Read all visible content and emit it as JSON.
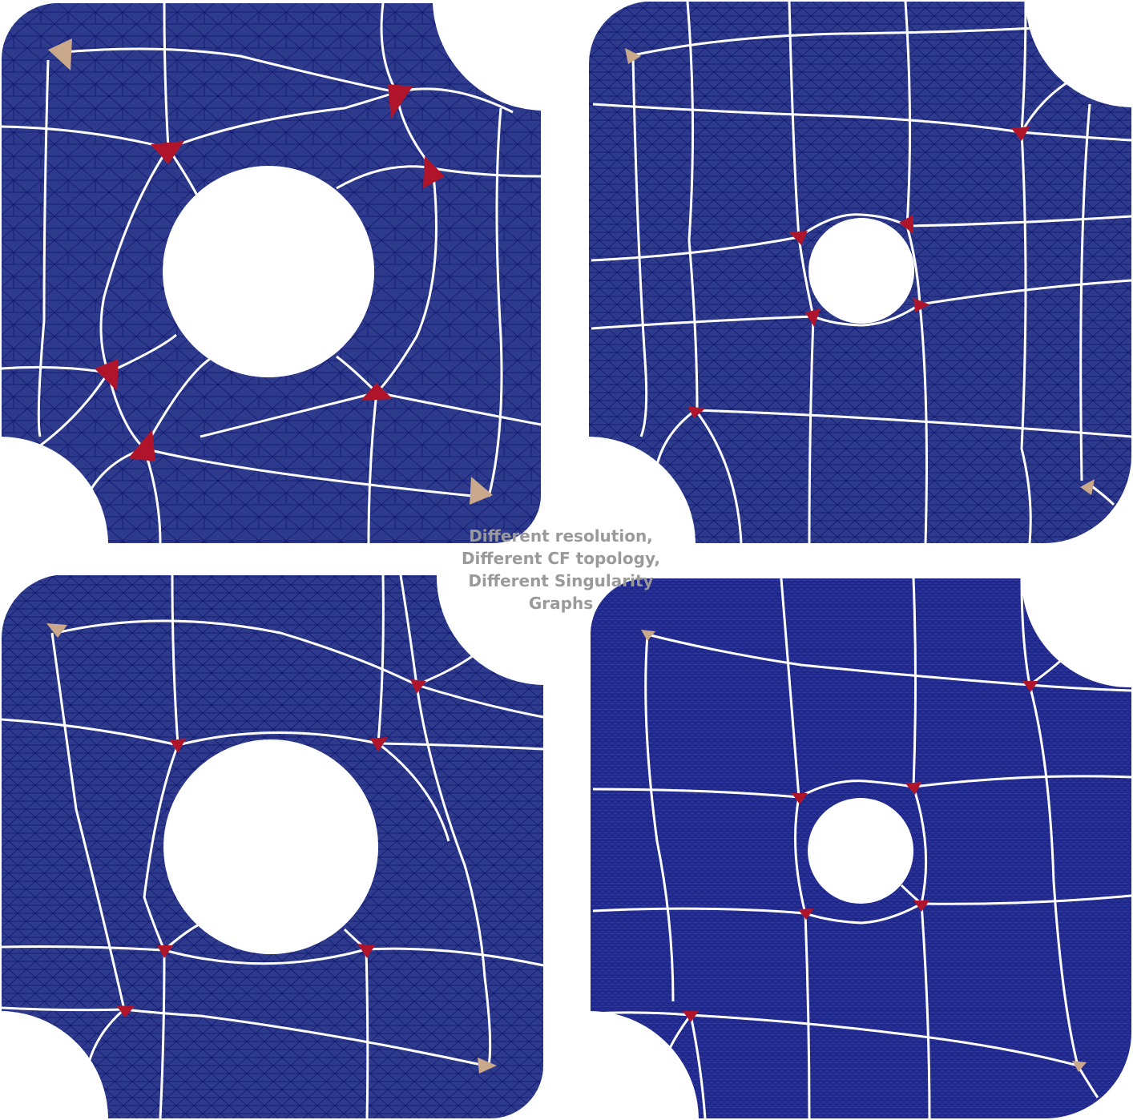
{
  "caption": {
    "lines": [
      "Different resolution,",
      "Different CF topology,",
      "Different Singularity",
      "Graphs"
    ]
  },
  "colors": {
    "mesh_fill": "#2e3a8c",
    "mesh_fill_fine": "#1c2488",
    "mesh_edge": "#0f156e",
    "separatrix": "#ffffff",
    "singularity_index_positive": "#b0142a",
    "singularity_index_negative": "#c9a88c",
    "caption_text": "#9a9a9a",
    "background": "#ffffff"
  },
  "panels": [
    {
      "name": "panel-top-left",
      "resolution": "coarse",
      "singularities": {
        "red": 6,
        "tan": 2
      }
    },
    {
      "name": "panel-top-right",
      "resolution": "medium",
      "singularities": {
        "red": 6,
        "tan": 2
      }
    },
    {
      "name": "panel-bottom-left",
      "resolution": "medium",
      "singularities": {
        "red": 6,
        "tan": 2
      }
    },
    {
      "name": "panel-bottom-right",
      "resolution": "fine",
      "singularities": {
        "red": 6,
        "tan": 2
      }
    }
  ]
}
